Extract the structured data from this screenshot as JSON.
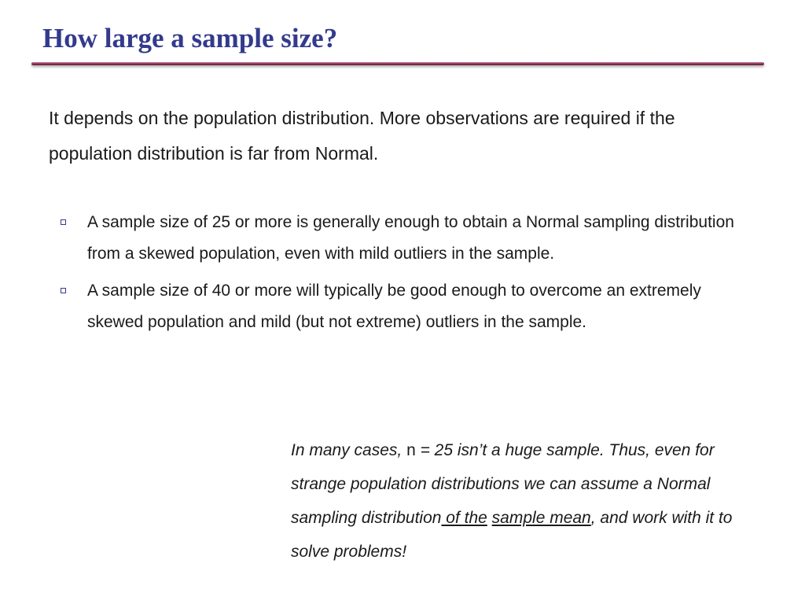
{
  "slide": {
    "title": "How large a sample size?",
    "intro": "It depends on the population distribution. More observations are required if the population distribution is far from Normal.",
    "bullets": [
      {
        "text": "A sample size of 25 or more is generally enough to obtain a Normal sampling distribution from a skewed population, even with mild outliers in the sample."
      },
      {
        "text": "A sample size of 40 or more will typically be good enough to overcome an extremely skewed population and mild (but not extreme) outliers in the sample."
      }
    ],
    "note": {
      "part1": "In many cases, ",
      "n_symbol": "n",
      "part2": " = 25 isn’t a huge sample. Thus, even for strange population distributions we can assume a Normal sampling distribution",
      "underlined1": " of the",
      "space": " ",
      "underlined2": "sample mean",
      "part3": ", and work with it to solve problems!"
    }
  }
}
